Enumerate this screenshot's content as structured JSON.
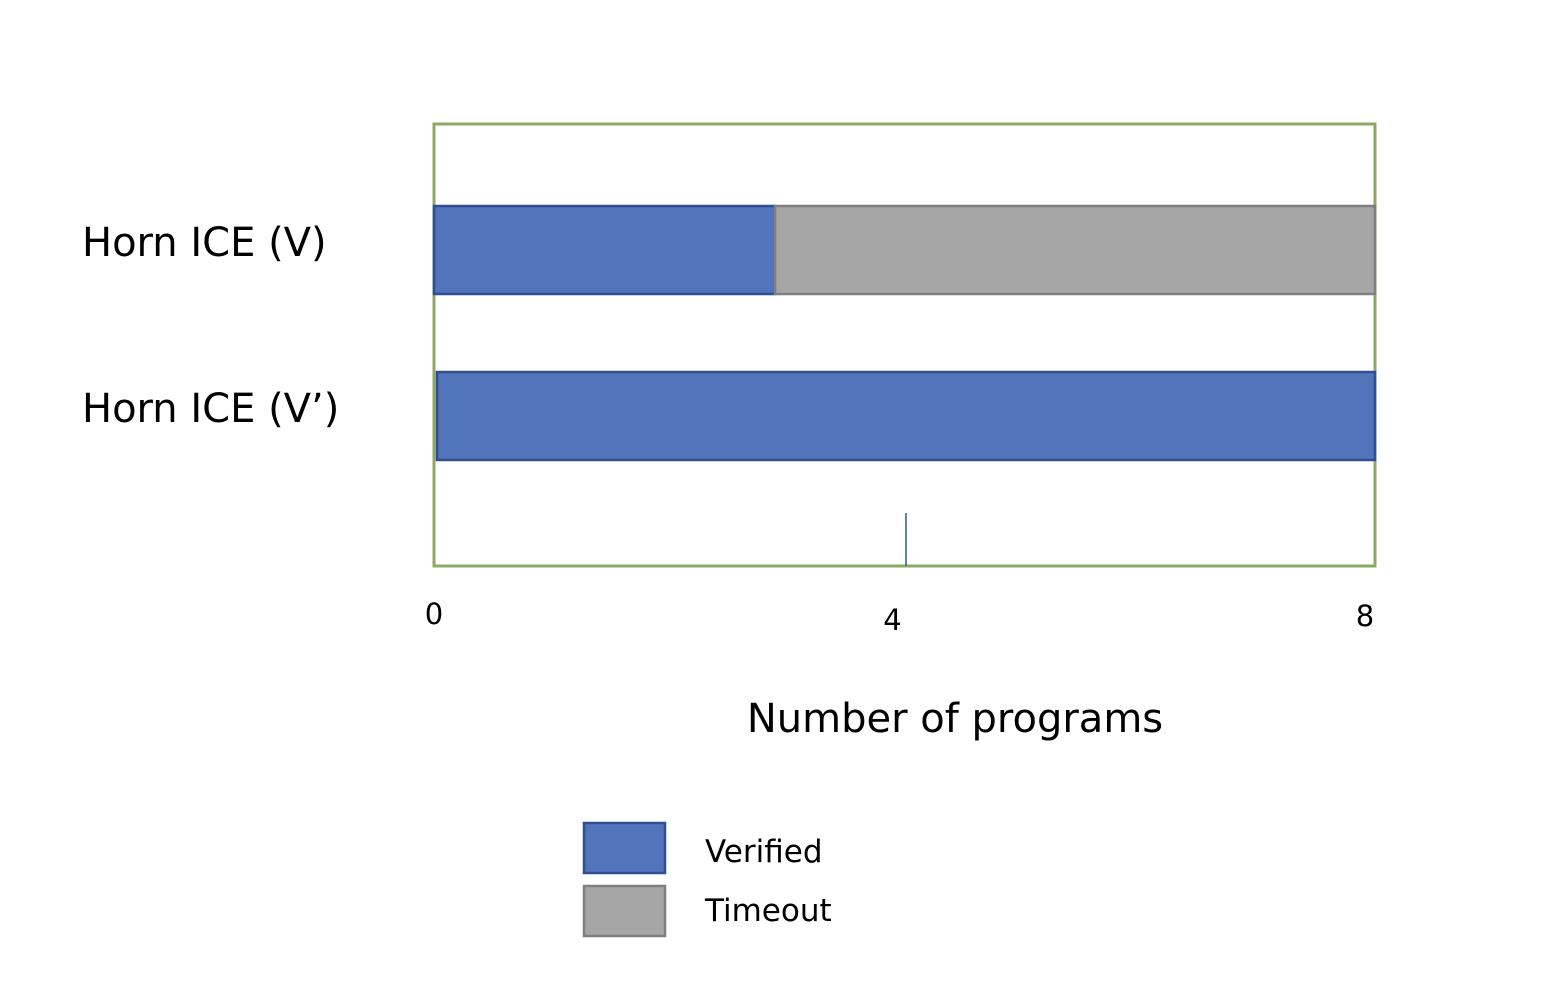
{
  "chart_data": {
    "type": "bar",
    "orientation": "horizontal",
    "stacked": true,
    "categories": [
      "Horn ICE (V)",
      "Horn ICE (V’)"
    ],
    "series": [
      {
        "name": "Verified",
        "values": [
          2.9,
          8
        ],
        "color": "#5274BA"
      },
      {
        "name": "Timeout",
        "values": [
          5.1,
          0
        ],
        "color": "#A6A6A6"
      }
    ],
    "xlabel": "Number of programs",
    "ylabel": "",
    "title": "",
    "xlim": [
      0,
      8
    ],
    "xticks": [
      {
        "value": 0,
        "label": "0"
      },
      {
        "value": 4,
        "label": "4"
      },
      {
        "value": 8,
        "label": "8"
      }
    ],
    "frame_color": "#8BA865",
    "grid": false,
    "legend_position": "bottom"
  }
}
